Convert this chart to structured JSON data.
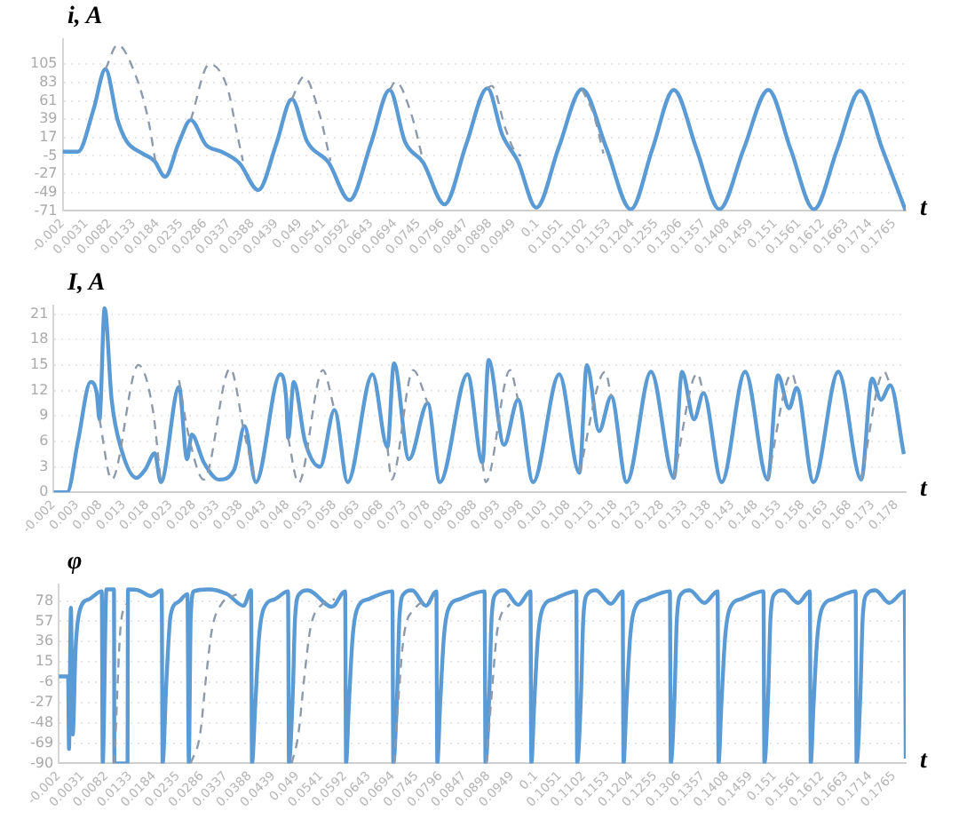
{
  "chart_data": [
    {
      "type": "line",
      "ylabel": "i, A",
      "xlabel": "t",
      "xlim": [
        -0.002,
        0.179
      ],
      "xticks": [
        -0.002,
        0.0031,
        0.0082,
        0.0133,
        0.0184,
        0.0235,
        0.0286,
        0.0337,
        0.0388,
        0.0439,
        0.049,
        0.0541,
        0.0592,
        0.0643,
        0.0694,
        0.0745,
        0.0796,
        0.0847,
        0.0898,
        0.0949,
        0.1,
        0.1051,
        0.1102,
        0.1153,
        0.1204,
        0.1255,
        0.1306,
        0.1357,
        0.1408,
        0.1459,
        0.151,
        0.1561,
        0.1612,
        0.1663,
        0.1714,
        0.1765
      ],
      "ylim": [
        -71,
        135
      ],
      "yticks": [
        -71,
        -49,
        -27,
        -5,
        17,
        39,
        61,
        83,
        105
      ],
      "grid": "y",
      "series": [
        {
          "color": "#8c9aab",
          "line_style": "dashed",
          "x": [
            0.0072,
            0.0098,
            0.0137,
            0.0164,
            0.0179,
            0.019,
            0.0255,
            0.0295,
            0.0334,
            0.0354,
            0.0367,
            0.04,
            0.0472,
            0.0498,
            0.0531,
            0.0555,
            0.06,
            0.0682,
            0.0695,
            0.0728,
            0.0754,
            0.08,
            0.0892,
            0.0901,
            0.0931,
            0.0951,
            0.0964,
            0.1,
            0.1095,
            0.1121,
            0.1141
          ],
          "values": [
            99,
            128,
            91,
            38,
            -11,
            null,
            38,
            105,
            76,
            23,
            -11,
            null,
            63,
            90,
            46,
            -11,
            null,
            74,
            84,
            46,
            -11,
            null,
            76,
            79,
            27,
            0,
            -5,
            null,
            75,
            43,
            -2
          ]
        },
        {
          "color": "#5b9bd5",
          "line_style": "solid",
          "x": [
            -0.002,
            0.0013,
            0.0046,
            0.0072,
            0.0098,
            0.0118,
            0.0151,
            0.0177,
            0.02,
            0.0229,
            0.0255,
            0.0288,
            0.0321,
            0.036,
            0.04,
            0.0439,
            0.0472,
            0.0505,
            0.0551,
            0.0596,
            0.0642,
            0.0682,
            0.0715,
            0.0754,
            0.08,
            0.0846,
            0.0892,
            0.0924,
            0.0957,
            0.0997,
            0.1045,
            0.1095,
            0.1147,
            0.12,
            0.1246,
            0.1292,
            0.1341,
            0.139,
            0.1442,
            0.1495,
            0.1543,
            0.1593,
            0.1643,
            0.1692,
            0.174,
            0.179
          ],
          "values": [
            0,
            0,
            50,
            99,
            38,
            12,
            -2,
            -11,
            -30,
            10,
            38,
            8,
            0,
            -14,
            -46,
            10,
            63,
            12,
            -13,
            -58,
            10,
            74,
            12,
            -13,
            -63,
            8,
            76,
            20,
            -11,
            -67,
            5,
            75,
            5,
            -69,
            3,
            74,
            3,
            -69,
            3,
            74,
            3,
            -69,
            3,
            73,
            3,
            -71
          ]
        }
      ]
    },
    {
      "type": "line",
      "ylabel": "I, A",
      "xlabel": "t",
      "xlim": [
        -0.002,
        0.18
      ],
      "xticks": [
        -0.002,
        0.003,
        0.008,
        0.013,
        0.018,
        0.023,
        0.028,
        0.033,
        0.038,
        0.043,
        0.048,
        0.053,
        0.058,
        0.063,
        0.068,
        0.073,
        0.078,
        0.083,
        0.088,
        0.093,
        0.098,
        0.103,
        0.108,
        0.113,
        0.118,
        0.123,
        0.128,
        0.133,
        0.138,
        0.143,
        0.148,
        0.153,
        0.158,
        0.163,
        0.168,
        0.173,
        0.178
      ],
      "ylim": [
        0,
        22
      ],
      "yticks": [
        0,
        3,
        6,
        9,
        12,
        15,
        18,
        21
      ],
      "grid": "y",
      "series": [
        {
          "color": "#8c9aab",
          "line_style": "dashed",
          "x": [
            0.0078,
            0.0104,
            0.0161,
            0.0192,
            0.0209,
            0.023,
            0.0248,
            0.0268,
            0.0301,
            0.0357,
            0.0388,
            0.0412,
            0.045,
            0.0481,
            0.0503,
            0.0555,
            0.058,
            0.065,
            0.0693,
            0.0702,
            0.0748,
            0.0779,
            0.085,
            0.0896,
            0.0903,
            0.0955,
            0.0972,
            0.105,
            0.1103,
            0.1158,
            0.1171,
            0.125,
            0.1305,
            0.1355,
            0.1368,
            0.145,
            0.1505,
            0.1557,
            0.1567,
            0.165,
            0.1705,
            0.1754,
            0.1767
          ],
          "values": [
            8.6,
            1.5,
            15,
            9.7,
            1.2,
            null,
            13.2,
            6.8,
            1.5,
            14.6,
            6.8,
            1.2,
            null,
            6.4,
            1.1,
            14.4,
            9.7,
            null,
            5.3,
            1.5,
            14.4,
            10.5,
            null,
            3.5,
            1.2,
            14.4,
            10.9,
            null,
            2.3,
            14.2,
            11.3,
            null,
            1.7,
            14,
            11.7,
            null,
            1.5,
            14,
            12.3,
            null,
            1.5,
            14.2,
            12.6
          ]
        },
        {
          "color": "#5b9bd5",
          "line_style": "solid",
          "x": [
            -0.002,
            0.0009,
            0.0032,
            0.0059,
            0.0072,
            0.0078,
            0.0089,
            0.0104,
            0.0124,
            0.0157,
            0.0176,
            0.0196,
            0.0209,
            0.0248,
            0.0265,
            0.0275,
            0.0301,
            0.0333,
            0.0366,
            0.0388,
            0.0412,
            0.0464,
            0.0477,
            0.0481,
            0.0493,
            0.0517,
            0.0549,
            0.058,
            0.0608,
            0.0661,
            0.0693,
            0.0707,
            0.0739,
            0.0779,
            0.0805,
            0.0864,
            0.0896,
            0.0909,
            0.0942,
            0.0972,
            0.1004,
            0.106,
            0.1103,
            0.1119,
            0.1145,
            0.1171,
            0.1204,
            0.1256,
            0.1305,
            0.1322,
            0.1348,
            0.1368,
            0.1407,
            0.1457,
            0.1505,
            0.1527,
            0.1551,
            0.1567,
            0.1603,
            0.1656,
            0.1705,
            0.1728,
            0.1747,
            0.1767,
            0.1796
          ],
          "values": [
            0,
            0,
            6,
            13,
            11.7,
            8.6,
            21.7,
            10.9,
            5.2,
            1.7,
            2.7,
            4.6,
            1.2,
            12.4,
            3.9,
            6.8,
            3.5,
            1.5,
            2.7,
            7.8,
            1.2,
            13.9,
            10.9,
            6.4,
            13,
            6,
            3,
            9.7,
            1.2,
            13.9,
            5.3,
            15.2,
            3.9,
            10.5,
            1.2,
            13.9,
            3.5,
            15.6,
            5.6,
            10.9,
            1.2,
            13.9,
            2.3,
            15,
            7.2,
            11.3,
            1.2,
            14.2,
            1.7,
            14.2,
            8.6,
            11.7,
            1.2,
            14.2,
            1.5,
            13.8,
            9.9,
            12.3,
            1.2,
            14.2,
            1.5,
            13.4,
            10.9,
            12.6,
            4.5
          ]
        }
      ]
    },
    {
      "type": "line",
      "ylabel": "φ",
      "xlabel": "t",
      "xlim": [
        -0.002,
        0.179
      ],
      "xticks": [
        -0.002,
        0.0031,
        0.0082,
        0.0133,
        0.0184,
        0.0235,
        0.0286,
        0.0337,
        0.0388,
        0.0439,
        0.049,
        0.0541,
        0.0592,
        0.0643,
        0.0694,
        0.0745,
        0.0796,
        0.0847,
        0.0898,
        0.0949,
        0.1,
        0.1051,
        0.1102,
        0.1153,
        0.1204,
        0.1255,
        0.1306,
        0.1357,
        0.1408,
        0.1459,
        0.151,
        0.1561,
        0.1612,
        0.1663,
        0.1714,
        0.1765
      ],
      "ylim": [
        -90,
        95
      ],
      "yticks": [
        -90,
        -69,
        -48,
        -27,
        -6,
        15,
        36,
        57,
        78
      ],
      "grid": "y",
      "series": [
        {
          "color": "#8c9aab",
          "line_style": "dashed",
          "x": [
            0.0099,
            0.0112,
            0.0124,
            0.02,
            0.0262,
            0.0282,
            0.0295,
            0.0308,
            0.0328,
            0.036,
            0.04,
            0.0478,
            0.0492,
            0.0505,
            0.0518,
            0.0544,
            0.057,
            0.06,
            0.0697,
            0.0705,
            0.0717,
            0.0741,
            0.0774,
            0.08,
            0.0894,
            0.0905,
            0.0918,
            0.0944
          ],
          "values": [
            -90,
            50,
            75,
            null,
            -90,
            -60,
            0,
            50,
            75,
            85,
            null,
            -90,
            -60,
            0,
            50,
            75,
            80,
            null,
            -90,
            -30,
            40,
            70,
            80,
            null,
            -90,
            -20,
            50,
            75
          ]
        },
        {
          "color": "#5b9bd5",
          "line_style": "solid",
          "x": [
            -0.002,
            0,
            0.0002,
            0.0006,
            0.001,
            0.0016,
            0.0026,
            0.0046,
            0.0072,
            0.0074,
            0.0082,
            0.0098,
            0.0099,
            0.0127,
            0.0128,
            0.0151,
            0.0177,
            0.02,
            0.0202,
            0.021,
            0.0219,
            0.0236,
            0.0255,
            0.0258,
            0.0262,
            0.0269,
            0.03,
            0.034,
            0.0375,
            0.0391,
            0.0393,
            0.04,
            0.0408,
            0.0418,
            0.0443,
            0.047,
            0.0472,
            0.048,
            0.0485,
            0.0494,
            0.0512,
            0.0564,
            0.0592,
            0.0594,
            0.06,
            0.0608,
            0.0618,
            0.0643,
            0.0693,
            0.0695,
            0.0703,
            0.0708,
            0.0717,
            0.0735,
            0.0765,
            0.0787,
            0.0789,
            0.0795,
            0.0803,
            0.0813,
            0.0838,
            0.089,
            0.0892,
            0.09,
            0.0905,
            0.0914,
            0.0932,
            0.0962,
            0.0988,
            0.099,
            0.0996,
            0.1004,
            0.1014,
            0.1039,
            0.1086,
            0.1088,
            0.1096,
            0.1101,
            0.111,
            0.1128,
            0.116,
            0.1185,
            0.1187,
            0.1193,
            0.1201,
            0.1211,
            0.1236,
            0.1286,
            0.1288,
            0.1296,
            0.1301,
            0.131,
            0.1328,
            0.136,
            0.1388,
            0.139,
            0.1396,
            0.1404,
            0.1414,
            0.1439,
            0.1486,
            0.1488,
            0.1496,
            0.1501,
            0.151,
            0.1528,
            0.156,
            0.1585,
            0.1587,
            0.1593,
            0.1601,
            0.1611,
            0.1636,
            0.1683,
            0.1685,
            0.1693,
            0.1698,
            0.1707,
            0.1725,
            0.1755,
            0.1788,
            0.179
          ],
          "values": [
            0,
            0,
            -75,
            71,
            -60,
            28,
            70,
            80,
            88,
            -90,
            90,
            90,
            -90,
            -90,
            90,
            89,
            83,
            89,
            -90,
            -6,
            63,
            77,
            85,
            -90,
            60,
            88,
            90,
            85,
            73,
            89,
            -90,
            -30,
            40,
            70,
            80,
            88,
            -90,
            -20,
            60,
            85,
            89,
            72,
            88,
            -90,
            -30,
            40,
            70,
            80,
            88,
            -90,
            -20,
            60,
            85,
            89,
            73,
            88,
            -90,
            -30,
            40,
            70,
            80,
            88,
            -90,
            -20,
            60,
            85,
            89,
            74,
            88,
            -90,
            -30,
            40,
            70,
            80,
            88,
            -90,
            -20,
            60,
            85,
            89,
            75,
            88,
            -90,
            -30,
            40,
            70,
            80,
            88,
            -90,
            -20,
            60,
            85,
            89,
            76,
            88,
            -90,
            -30,
            40,
            70,
            80,
            88,
            -90,
            -20,
            60,
            85,
            89,
            76,
            88,
            -90,
            -30,
            40,
            70,
            80,
            88,
            -90,
            -20,
            60,
            85,
            89,
            76,
            88,
            -85
          ]
        }
      ]
    }
  ]
}
